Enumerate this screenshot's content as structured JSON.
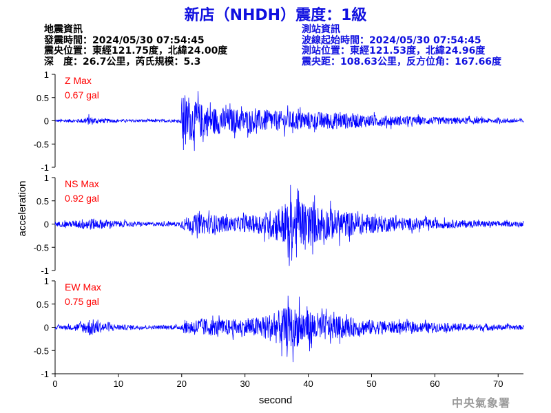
{
  "header": {
    "title": "新店（NHDH）震度：1級"
  },
  "quake_info": {
    "heading": "地震資訊",
    "time_line": "發震時間：2024/05/30 07:54:45",
    "epicenter_line": "震央位置：東經121.75度，北緯24.00度",
    "depth_line": "深　度：26.7公里，芮氏規模：5.3"
  },
  "station_info": {
    "heading": "測站資訊",
    "wave_start_line": "波線起始時間：2024/05/30 07:54:45",
    "location_line": "測站位置：東經121.53度，北緯24.96度",
    "distance_line": "震央距：108.63公里，反方位角：167.66度"
  },
  "watermark": "中央氣象署",
  "chart_data": {
    "type": "line",
    "xlabel": "second",
    "ylabel": "acceleration",
    "xlim": [
      0,
      74
    ],
    "x_ticks": [
      "0",
      "10",
      "20",
      "30",
      "40",
      "50",
      "60",
      "70"
    ],
    "y_ticks": [
      "-1",
      "-0.5",
      "0",
      "0.5",
      "1"
    ],
    "ylim": [
      -1,
      1
    ],
    "line_color": "#0000ff",
    "label_color": "#ff0000",
    "series": [
      {
        "name": "Z",
        "max_label": "Z Max",
        "max_value": "0.67 gal",
        "envelope": [
          [
            0,
            0.03
          ],
          [
            4,
            0.04
          ],
          [
            5.5,
            0.1
          ],
          [
            6.5,
            0.06
          ],
          [
            10,
            0.03
          ],
          [
            19.8,
            0.03
          ],
          [
            20,
            0.55
          ],
          [
            21,
            0.45
          ],
          [
            22.5,
            0.4
          ],
          [
            25,
            0.3
          ],
          [
            30,
            0.25
          ],
          [
            35,
            0.22
          ],
          [
            40,
            0.2
          ],
          [
            45,
            0.18
          ],
          [
            50,
            0.13
          ],
          [
            55,
            0.1
          ],
          [
            60,
            0.08
          ],
          [
            65,
            0.07
          ],
          [
            70,
            0.05
          ],
          [
            74,
            0.05
          ]
        ],
        "peaks": [
          [
            20.3,
            -0.63
          ],
          [
            22.6,
            0.64
          ],
          [
            21.1,
            0.5
          ],
          [
            20.5,
            0.55
          ],
          [
            24.5,
            0.4
          ]
        ]
      },
      {
        "name": "NS",
        "max_label": "NS Max",
        "max_value": "0.92 gal",
        "envelope": [
          [
            0,
            0.05
          ],
          [
            3,
            0.07
          ],
          [
            5,
            0.14
          ],
          [
            6,
            0.12
          ],
          [
            9,
            0.08
          ],
          [
            14,
            0.04
          ],
          [
            19.8,
            0.05
          ],
          [
            20,
            0.12
          ],
          [
            22,
            0.2
          ],
          [
            24,
            0.22
          ],
          [
            28,
            0.15
          ],
          [
            32,
            0.2
          ],
          [
            34,
            0.3
          ],
          [
            36,
            0.45
          ],
          [
            38,
            0.55
          ],
          [
            40,
            0.45
          ],
          [
            43,
            0.35
          ],
          [
            46,
            0.28
          ],
          [
            50,
            0.2
          ],
          [
            55,
            0.14
          ],
          [
            60,
            0.1
          ],
          [
            65,
            0.08
          ],
          [
            70,
            0.06
          ],
          [
            74,
            0.05
          ]
        ],
        "peaks": [
          [
            37.2,
            0.84
          ],
          [
            37.0,
            -0.9
          ],
          [
            36.8,
            -0.72
          ],
          [
            38.5,
            0.72
          ],
          [
            41.0,
            0.62
          ],
          [
            39.5,
            -0.55
          ],
          [
            43.5,
            0.5
          ],
          [
            42.5,
            -0.45
          ]
        ]
      },
      {
        "name": "EW",
        "max_label": "EW Max",
        "max_value": "0.75 gal",
        "envelope": [
          [
            0,
            0.04
          ],
          [
            3,
            0.06
          ],
          [
            4.5,
            0.12
          ],
          [
            5.5,
            0.2
          ],
          [
            7,
            0.12
          ],
          [
            10,
            0.06
          ],
          [
            15,
            0.04
          ],
          [
            19.8,
            0.05
          ],
          [
            20,
            0.12
          ],
          [
            23,
            0.2
          ],
          [
            26,
            0.17
          ],
          [
            30,
            0.18
          ],
          [
            33,
            0.25
          ],
          [
            35,
            0.35
          ],
          [
            37,
            0.45
          ],
          [
            39,
            0.4
          ],
          [
            42,
            0.3
          ],
          [
            46,
            0.22
          ],
          [
            50,
            0.16
          ],
          [
            55,
            0.12
          ],
          [
            60,
            0.1
          ],
          [
            65,
            0.08
          ],
          [
            70,
            0.06
          ],
          [
            74,
            0.05
          ]
        ],
        "peaks": [
          [
            36.8,
            0.68
          ],
          [
            38.6,
            0.66
          ],
          [
            35.8,
            -0.62
          ],
          [
            37.6,
            -0.75
          ],
          [
            39.8,
            0.45
          ],
          [
            40.5,
            -0.45
          ],
          [
            42.8,
            0.4
          ]
        ]
      }
    ]
  }
}
